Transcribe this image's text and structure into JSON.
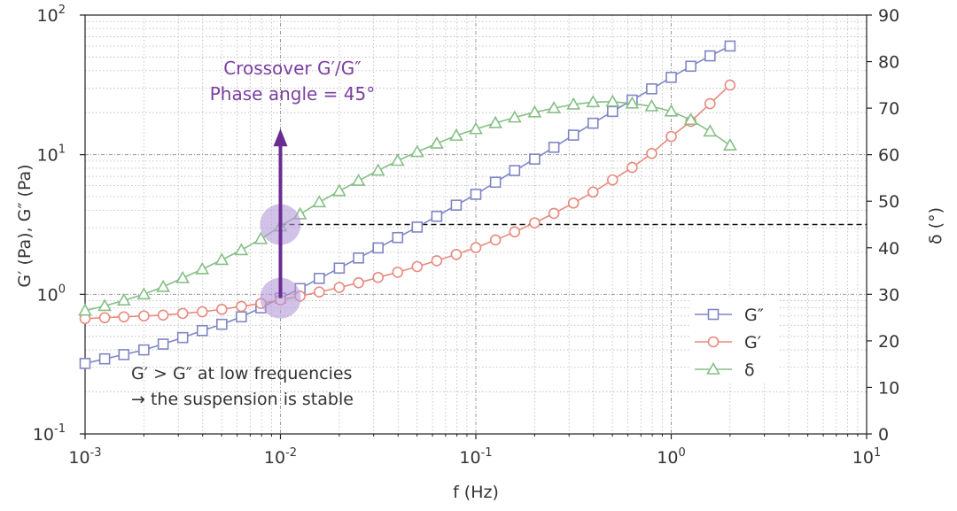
{
  "chart_data": {
    "type": "line",
    "x_scale": "log",
    "y_scale": "log",
    "xlabel": "f (Hz)",
    "ylabel": "G′ (Pa), G″ (Pa)",
    "y2label": "δ (°)",
    "xlim": [
      0.001,
      10
    ],
    "ylim": [
      0.1,
      100
    ],
    "y2lim": [
      0,
      90
    ],
    "grid": true,
    "x_ticks": [
      {
        "base": "10",
        "exp": "-3"
      },
      {
        "base": "10",
        "exp": "-2"
      },
      {
        "base": "10",
        "exp": "-1"
      },
      {
        "base": "10",
        "exp": "0"
      },
      {
        "base": "10",
        "exp": "1"
      }
    ],
    "y_ticks": [
      {
        "base": "10",
        "exp": "-1"
      },
      {
        "base": "10",
        "exp": "0"
      },
      {
        "base": "10",
        "exp": "1"
      },
      {
        "base": "10",
        "exp": "2"
      }
    ],
    "y2_ticks": [
      "0",
      "10",
      "20",
      "30",
      "40",
      "50",
      "60",
      "70",
      "80",
      "90"
    ],
    "series": [
      {
        "name": "G″",
        "axis": "left",
        "marker": "square",
        "color": "#7f86c4",
        "points": [
          [
            0.001,
            0.32
          ],
          [
            0.00126,
            0.345
          ],
          [
            0.00158,
            0.37
          ],
          [
            0.002,
            0.4
          ],
          [
            0.00251,
            0.44
          ],
          [
            0.00316,
            0.49
          ],
          [
            0.00398,
            0.55
          ],
          [
            0.00501,
            0.61
          ],
          [
            0.00631,
            0.69
          ],
          [
            0.00794,
            0.8
          ],
          [
            0.01,
            0.94
          ],
          [
            0.0126,
            1.1
          ],
          [
            0.0158,
            1.3
          ],
          [
            0.02,
            1.54
          ],
          [
            0.0251,
            1.82
          ],
          [
            0.0316,
            2.15
          ],
          [
            0.0398,
            2.55
          ],
          [
            0.0501,
            3.03
          ],
          [
            0.0631,
            3.62
          ],
          [
            0.0794,
            4.35
          ],
          [
            0.1,
            5.2
          ],
          [
            0.126,
            6.35
          ],
          [
            0.158,
            7.7
          ],
          [
            0.2,
            9.3
          ],
          [
            0.251,
            11.3
          ],
          [
            0.316,
            13.8
          ],
          [
            0.398,
            16.8
          ],
          [
            0.501,
            20.4
          ],
          [
            0.631,
            24.6
          ],
          [
            0.794,
            29.6
          ],
          [
            1.0,
            35.8
          ],
          [
            1.26,
            43
          ],
          [
            1.58,
            51
          ],
          [
            2.0,
            60
          ]
        ]
      },
      {
        "name": "G′",
        "axis": "left",
        "marker": "circle",
        "color": "#e88a7e",
        "points": [
          [
            0.001,
            0.67
          ],
          [
            0.00126,
            0.68
          ],
          [
            0.00158,
            0.69
          ],
          [
            0.002,
            0.7
          ],
          [
            0.00251,
            0.71
          ],
          [
            0.00316,
            0.73
          ],
          [
            0.00398,
            0.75
          ],
          [
            0.00501,
            0.78
          ],
          [
            0.00631,
            0.82
          ],
          [
            0.00794,
            0.86
          ],
          [
            0.01,
            0.91
          ],
          [
            0.0126,
            0.97
          ],
          [
            0.0158,
            1.04
          ],
          [
            0.02,
            1.12
          ],
          [
            0.0251,
            1.21
          ],
          [
            0.0316,
            1.32
          ],
          [
            0.0398,
            1.44
          ],
          [
            0.0501,
            1.58
          ],
          [
            0.0631,
            1.74
          ],
          [
            0.0794,
            1.93
          ],
          [
            0.1,
            2.16
          ],
          [
            0.126,
            2.45
          ],
          [
            0.158,
            2.8
          ],
          [
            0.2,
            3.25
          ],
          [
            0.251,
            3.8
          ],
          [
            0.316,
            4.5
          ],
          [
            0.398,
            5.4
          ],
          [
            0.501,
            6.6
          ],
          [
            0.631,
            8.1
          ],
          [
            0.794,
            10.2
          ],
          [
            1.0,
            13.5
          ],
          [
            1.26,
            17.3
          ],
          [
            1.58,
            23.2
          ],
          [
            2.0,
            31.5
          ]
        ]
      },
      {
        "name": "δ",
        "axis": "right",
        "marker": "triangle",
        "color": "#86bf86",
        "points": [
          [
            0.001,
            26.5
          ],
          [
            0.00126,
            27.5
          ],
          [
            0.00158,
            28.7
          ],
          [
            0.002,
            30.0
          ],
          [
            0.00251,
            31.6
          ],
          [
            0.00316,
            33.5
          ],
          [
            0.00398,
            35.4
          ],
          [
            0.00501,
            37.4
          ],
          [
            0.00631,
            39.5
          ],
          [
            0.00794,
            41.9
          ],
          [
            0.01,
            44.6
          ],
          [
            0.0126,
            47.2
          ],
          [
            0.0158,
            49.8
          ],
          [
            0.02,
            52.2
          ],
          [
            0.0251,
            54.4
          ],
          [
            0.0316,
            56.6
          ],
          [
            0.0398,
            58.7
          ],
          [
            0.0501,
            60.6
          ],
          [
            0.0631,
            62.4
          ],
          [
            0.0794,
            64.1
          ],
          [
            0.1,
            65.5
          ],
          [
            0.126,
            66.8
          ],
          [
            0.158,
            68.0
          ],
          [
            0.2,
            69.1
          ],
          [
            0.251,
            70.0
          ],
          [
            0.316,
            70.8
          ],
          [
            0.398,
            71.3
          ],
          [
            0.501,
            71.4
          ],
          [
            0.631,
            71.0
          ],
          [
            0.794,
            70.4
          ],
          [
            1.0,
            69.3
          ],
          [
            1.26,
            67.5
          ],
          [
            1.58,
            65.0
          ],
          [
            2.0,
            62.0
          ]
        ]
      }
    ],
    "reference_line": {
      "axis": "right",
      "value": 45,
      "x_from": 0.01,
      "x_to": 10,
      "style": "dashed"
    },
    "arrow": {
      "x": 0.01,
      "from_y": 0.94,
      "to_y": 14.5,
      "color": "#6a2c91"
    },
    "highlights": [
      {
        "x": 0.01,
        "y": 0.94,
        "axis": "left"
      },
      {
        "x": 0.01,
        "y": 45,
        "axis": "right"
      }
    ],
    "legend": {
      "position": "bottom-right",
      "entries": [
        "G″",
        "G′",
        "δ"
      ]
    },
    "annotations": {
      "crossover_line1": "Crossover G′/G″",
      "crossover_line2": "Phase angle = 45°",
      "stability_line1": "G′ > G″ at low frequencies",
      "stability_line2": "→ the suspension is stable"
    },
    "colors": {
      "arrow": "#6a2c91",
      "annotation_purple": "#7b3fa0",
      "highlight": "#b49ad8",
      "grid": "#b8b8b8",
      "axis": "#222222"
    }
  }
}
